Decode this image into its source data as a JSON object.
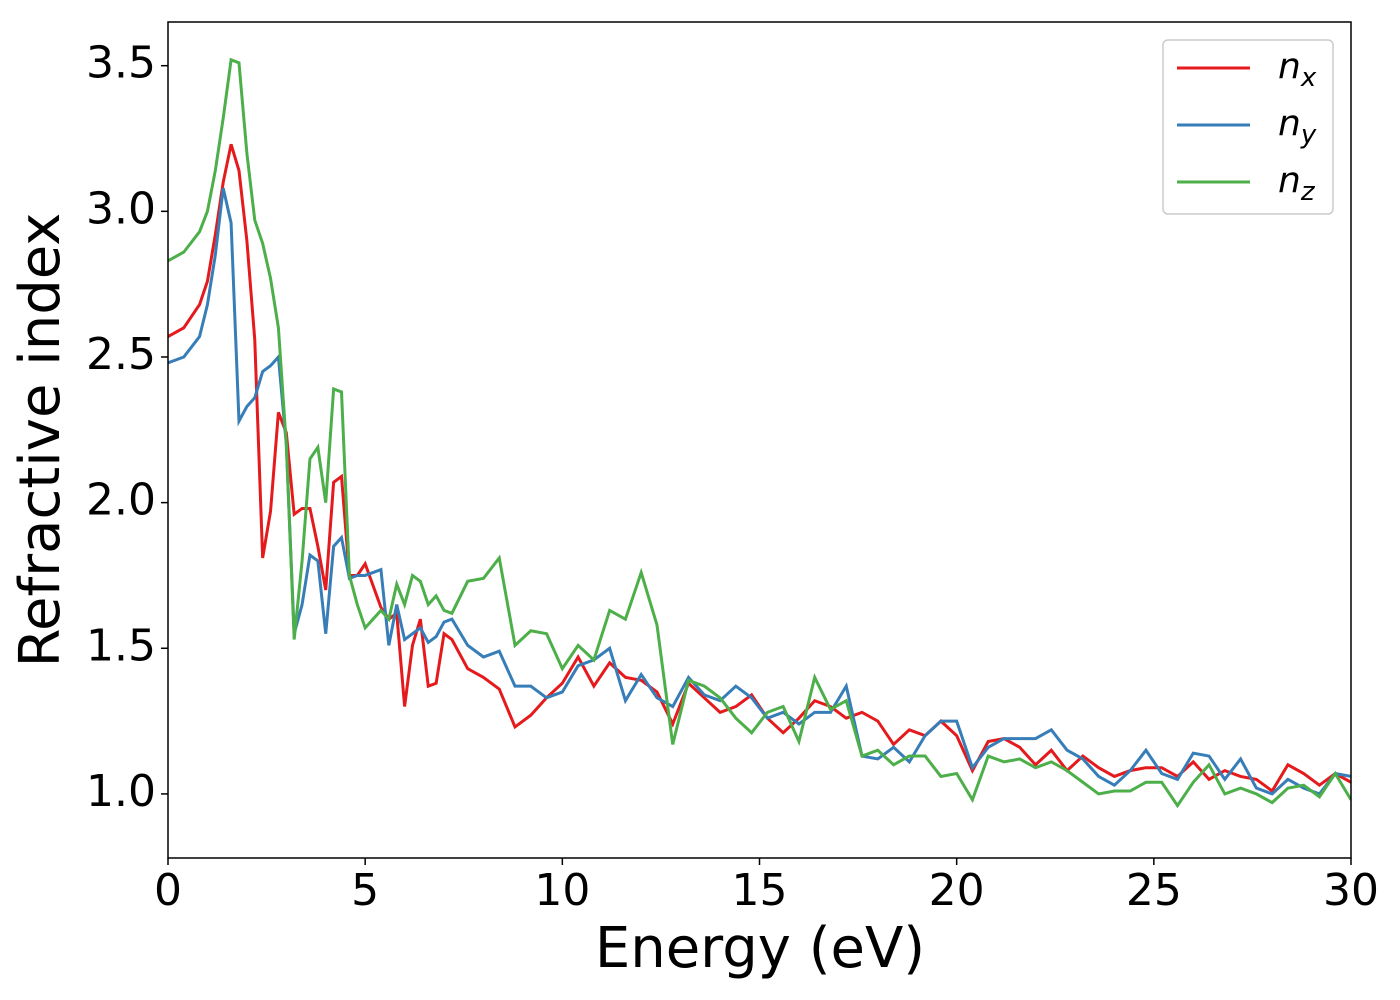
{
  "chart_data": {
    "type": "line",
    "xlabel": "Energy (eV)",
    "ylabel": "Refractive index",
    "x": [
      0,
      0.4,
      0.8,
      1.0,
      1.2,
      1.4,
      1.6,
      1.8,
      2.0,
      2.2,
      2.4,
      2.6,
      2.8,
      3.0,
      3.2,
      3.4,
      3.6,
      3.8,
      4.0,
      4.2,
      4.4,
      4.6,
      4.8,
      5.0,
      5.4,
      5.6,
      5.8,
      6.0,
      6.2,
      6.4,
      6.6,
      6.8,
      7.0,
      7.2,
      7.6,
      8.0,
      8.4,
      8.8,
      9.2,
      9.6,
      10.0,
      10.4,
      10.8,
      11.2,
      11.6,
      12.0,
      12.4,
      12.8,
      13.2,
      13.6,
      14.0,
      14.4,
      14.8,
      15.2,
      15.6,
      16.0,
      16.4,
      16.8,
      17.2,
      17.6,
      18.0,
      18.4,
      18.8,
      19.2,
      19.6,
      20.0,
      20.4,
      20.8,
      21.2,
      21.6,
      22.0,
      22.4,
      22.8,
      23.2,
      23.6,
      24.0,
      24.4,
      24.8,
      25.2,
      25.6,
      26.0,
      26.4,
      26.8,
      27.2,
      27.6,
      28.0,
      28.4,
      28.8,
      29.2,
      29.6,
      30.0
    ],
    "series": [
      {
        "name": "nx",
        "color": "#e41a1c",
        "values": [
          2.57,
          2.6,
          2.68,
          2.76,
          2.92,
          3.1,
          3.23,
          3.14,
          2.9,
          2.56,
          1.81,
          1.97,
          2.31,
          2.24,
          1.96,
          1.98,
          1.98,
          1.85,
          1.7,
          2.07,
          2.09,
          1.75,
          1.75,
          1.79,
          1.64,
          1.6,
          1.62,
          1.3,
          1.51,
          1.6,
          1.37,
          1.38,
          1.55,
          1.53,
          1.43,
          1.4,
          1.36,
          1.23,
          1.27,
          1.33,
          1.38,
          1.47,
          1.37,
          1.45,
          1.4,
          1.39,
          1.35,
          1.24,
          1.38,
          1.33,
          1.28,
          1.3,
          1.34,
          1.26,
          1.21,
          1.26,
          1.32,
          1.3,
          1.26,
          1.28,
          1.25,
          1.17,
          1.22,
          1.2,
          1.25,
          1.2,
          1.08,
          1.18,
          1.19,
          1.16,
          1.1,
          1.15,
          1.08,
          1.13,
          1.09,
          1.06,
          1.08,
          1.09,
          1.09,
          1.06,
          1.11,
          1.05,
          1.08,
          1.06,
          1.05,
          1.01,
          1.1,
          1.07,
          1.03,
          1.07,
          1.04
        ]
      },
      {
        "name": "ny",
        "color": "#377eb8",
        "values": [
          2.48,
          2.5,
          2.57,
          2.68,
          2.85,
          3.08,
          2.96,
          2.28,
          2.33,
          2.36,
          2.45,
          2.47,
          2.5,
          2.2,
          1.55,
          1.65,
          1.82,
          1.8,
          1.55,
          1.85,
          1.88,
          1.74,
          1.75,
          1.75,
          1.77,
          1.51,
          1.65,
          1.53,
          1.55,
          1.57,
          1.52,
          1.54,
          1.59,
          1.6,
          1.51,
          1.47,
          1.49,
          1.37,
          1.37,
          1.33,
          1.35,
          1.44,
          1.46,
          1.5,
          1.32,
          1.41,
          1.33,
          1.3,
          1.4,
          1.34,
          1.32,
          1.37,
          1.33,
          1.26,
          1.28,
          1.24,
          1.28,
          1.28,
          1.37,
          1.13,
          1.12,
          1.16,
          1.11,
          1.2,
          1.25,
          1.25,
          1.09,
          1.16,
          1.19,
          1.19,
          1.19,
          1.22,
          1.15,
          1.12,
          1.06,
          1.03,
          1.08,
          1.15,
          1.07,
          1.05,
          1.14,
          1.13,
          1.05,
          1.12,
          1.02,
          1.0,
          1.05,
          1.02,
          1.0,
          1.07,
          1.06
        ]
      },
      {
        "name": "nz",
        "color": "#4daf4a",
        "values": [
          2.83,
          2.86,
          2.93,
          3.0,
          3.14,
          3.32,
          3.52,
          3.51,
          3.2,
          2.97,
          2.89,
          2.77,
          2.6,
          2.2,
          1.53,
          1.8,
          2.15,
          2.19,
          2.0,
          2.39,
          2.38,
          1.75,
          1.65,
          1.57,
          1.63,
          1.6,
          1.72,
          1.65,
          1.75,
          1.73,
          1.65,
          1.68,
          1.63,
          1.62,
          1.73,
          1.74,
          1.81,
          1.51,
          1.56,
          1.55,
          1.43,
          1.51,
          1.46,
          1.63,
          1.6,
          1.76,
          1.58,
          1.17,
          1.39,
          1.37,
          1.33,
          1.26,
          1.21,
          1.28,
          1.3,
          1.18,
          1.4,
          1.29,
          1.32,
          1.13,
          1.15,
          1.1,
          1.13,
          1.13,
          1.06,
          1.07,
          0.98,
          1.13,
          1.11,
          1.12,
          1.09,
          1.11,
          1.08,
          1.04,
          1.0,
          1.01,
          1.01,
          1.04,
          1.04,
          0.96,
          1.04,
          1.1,
          1.0,
          1.02,
          1.0,
          0.97,
          1.02,
          1.03,
          0.99,
          1.07,
          0.98
        ]
      }
    ],
    "xlim": [
      0,
      30
    ],
    "xticks": [
      0,
      5,
      10,
      15,
      20,
      25,
      30
    ],
    "ylim": [
      0.78,
      3.65
    ],
    "yticks": [
      {
        "value": 1.0,
        "label": "1.0"
      },
      1.5,
      {
        "value": 2.0,
        "label": "2.0"
      },
      2.5,
      {
        "value": 3.0,
        "label": "3.0"
      },
      3.5
    ],
    "grid": false,
    "legend": "upper right"
  }
}
